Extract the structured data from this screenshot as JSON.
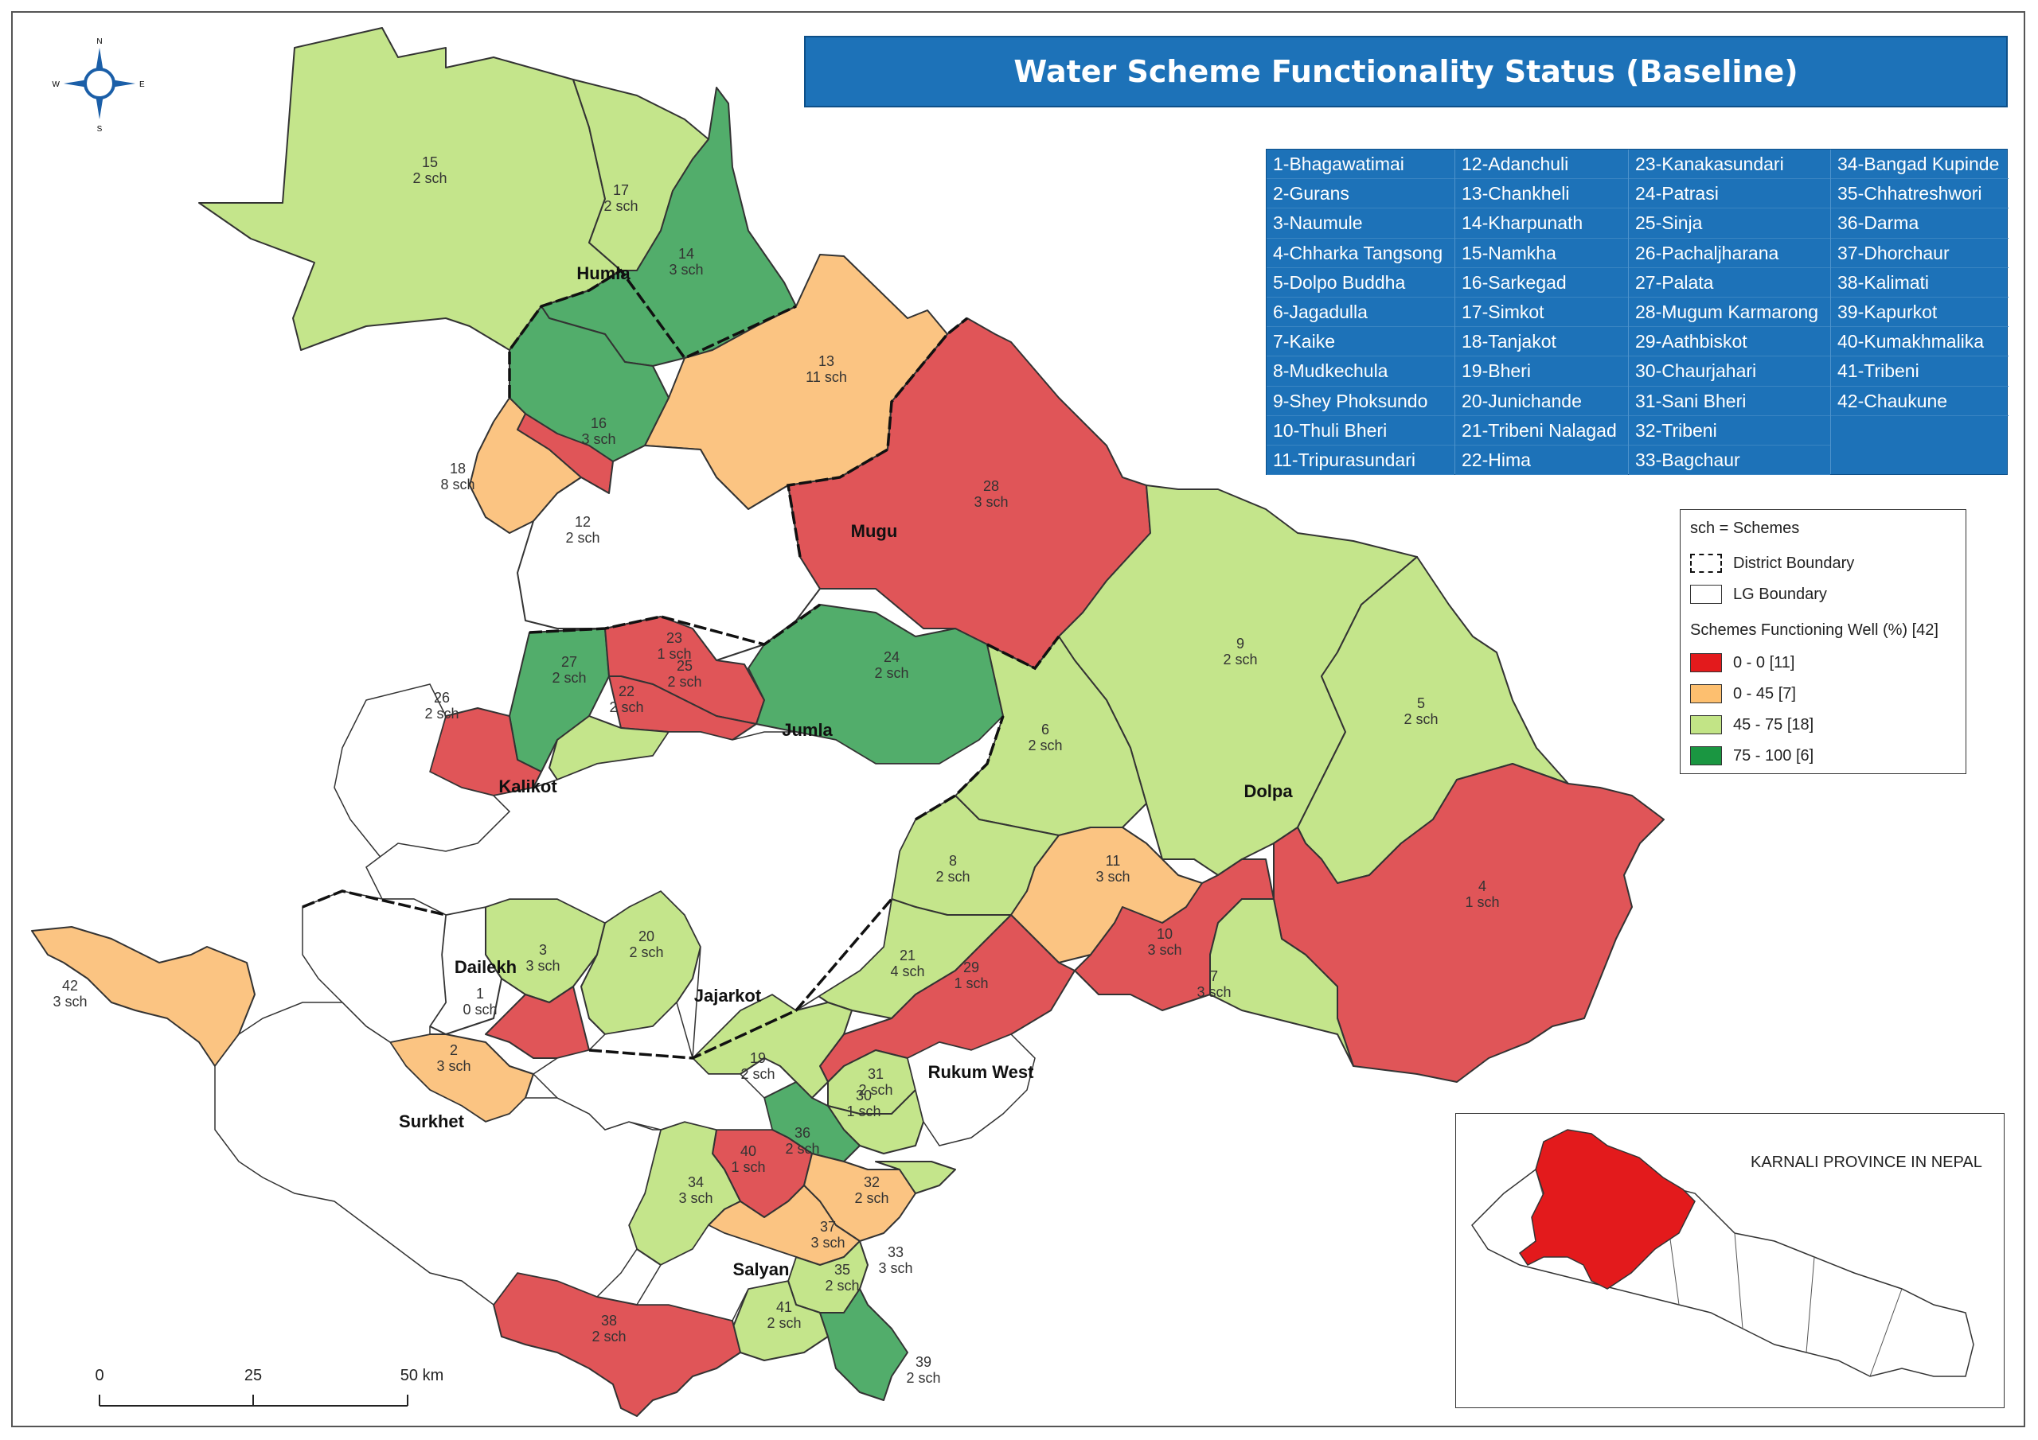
{
  "title": "Water Scheme Functionality Status (Baseline)",
  "compass": {
    "n": "N",
    "s": "S",
    "e": "E",
    "w": "W"
  },
  "lg_list": [
    [
      "1-Bhagawatimai",
      "2-Gurans",
      "3-Naumule",
      "4-Chharka Tangsong",
      "5-Dolpo Buddha",
      "6-Jagadulla",
      "7-Kaike",
      "8-Mudkechula",
      "9-Shey Phoksundo",
      "10-Thuli Bheri",
      "11-Tripurasundari"
    ],
    [
      "12-Adanchuli",
      "13-Chankheli",
      "14-Kharpunath",
      "15-Namkha",
      "16-Sarkegad",
      "17-Simkot",
      "18-Tanjakot",
      "19-Bheri",
      "20-Junichande",
      "21-Tribeni Nalagad",
      "22-Hima"
    ],
    [
      "23-Kanakasundari",
      "24-Patrasi",
      "25-Sinja",
      "26-Pachaljharana",
      "27-Palata",
      "28-Mugum Karmarong",
      "29-Aathbiskot",
      "30-Chaurjahari",
      "31-Sani Bheri",
      "32-Tribeni",
      "33-Bagchaur"
    ],
    [
      "34-Bangad Kupinde",
      "35-Chhatreshwori",
      "36-Darma",
      "37-Dhorchaur",
      "38-Kalimati",
      "39-Kapurkot",
      "40-Kumakhmalika",
      "41-Tribeni",
      "42-Chaukune"
    ]
  ],
  "legend": {
    "sch_note": "sch = Schemes",
    "district_boundary": "District Boundary",
    "lg_boundary": "LG Boundary",
    "heading": "Schemes Functioning Well (%) [42]",
    "classes": [
      {
        "label": "0 - 0 [11]",
        "color": "#e31a1c"
      },
      {
        "label": "0 - 45 [7]",
        "color": "#fdbf6f"
      },
      {
        "label": "45 - 75 [18]",
        "color": "#c2e486"
      },
      {
        "label": "75 - 100 [6]",
        "color": "#1a9641"
      }
    ]
  },
  "map_colors": {
    "red": "#e05558",
    "orange": "#fbc482",
    "light_green": "#c4e58b",
    "green": "#52ad6b",
    "white": "#ffffff",
    "border": "#222222"
  },
  "districts": [
    "Humla",
    "Mugu",
    "Jumla",
    "Kalikot",
    "Dolpa",
    "Dailekh",
    "Jajarkot",
    "Rukum West",
    "Surkhet",
    "Salyan"
  ],
  "lg_labels": [
    {
      "num": "15",
      "sch": "2 sch"
    },
    {
      "num": "17",
      "sch": "2 sch"
    },
    {
      "num": "14",
      "sch": "3 sch"
    },
    {
      "num": "13",
      "sch": "11 sch"
    },
    {
      "num": "16",
      "sch": "3 sch"
    },
    {
      "num": "18",
      "sch": "8 sch"
    },
    {
      "num": "12",
      "sch": "2 sch"
    },
    {
      "num": "28",
      "sch": "3 sch"
    },
    {
      "num": "23",
      "sch": "1 sch"
    },
    {
      "num": "25",
      "sch": "2 sch"
    },
    {
      "num": "27",
      "sch": "2 sch"
    },
    {
      "num": "24",
      "sch": "2 sch"
    },
    {
      "num": "26",
      "sch": "2 sch"
    },
    {
      "num": "22",
      "sch": "2 sch"
    },
    {
      "num": "9",
      "sch": "2 sch"
    },
    {
      "num": "5",
      "sch": "2 sch"
    },
    {
      "num": "6",
      "sch": "2 sch"
    },
    {
      "num": "8",
      "sch": "2 sch"
    },
    {
      "num": "11",
      "sch": "3 sch"
    },
    {
      "num": "4",
      "sch": "1 sch"
    },
    {
      "num": "10",
      "sch": "3 sch"
    },
    {
      "num": "7",
      "sch": "3 sch"
    },
    {
      "num": "42",
      "sch": "3 sch"
    },
    {
      "num": "3",
      "sch": "3 sch"
    },
    {
      "num": "20",
      "sch": "2 sch"
    },
    {
      "num": "21",
      "sch": "4 sch"
    },
    {
      "num": "29",
      "sch": "1 sch"
    },
    {
      "num": "1",
      "sch": "0 sch"
    },
    {
      "num": "2",
      "sch": "3 sch"
    },
    {
      "num": "19",
      "sch": "2 sch"
    },
    {
      "num": "31",
      "sch": "2 sch"
    },
    {
      "num": "30",
      "sch": "1 sch"
    },
    {
      "num": "36",
      "sch": "2 sch"
    },
    {
      "num": "40",
      "sch": "1 sch"
    },
    {
      "num": "34",
      "sch": "3 sch"
    },
    {
      "num": "32",
      "sch": "2 sch"
    },
    {
      "num": "37",
      "sch": "3 sch"
    },
    {
      "num": "33",
      "sch": "3 sch"
    },
    {
      "num": "35",
      "sch": "2 sch"
    },
    {
      "num": "38",
      "sch": "2 sch"
    },
    {
      "num": "41",
      "sch": "2 sch"
    },
    {
      "num": "39",
      "sch": "2 sch"
    }
  ],
  "scale": {
    "t0": "0",
    "t1": "25",
    "t2": "50 km"
  },
  "inset_title": "KARNALI PROVINCE IN NEPAL"
}
